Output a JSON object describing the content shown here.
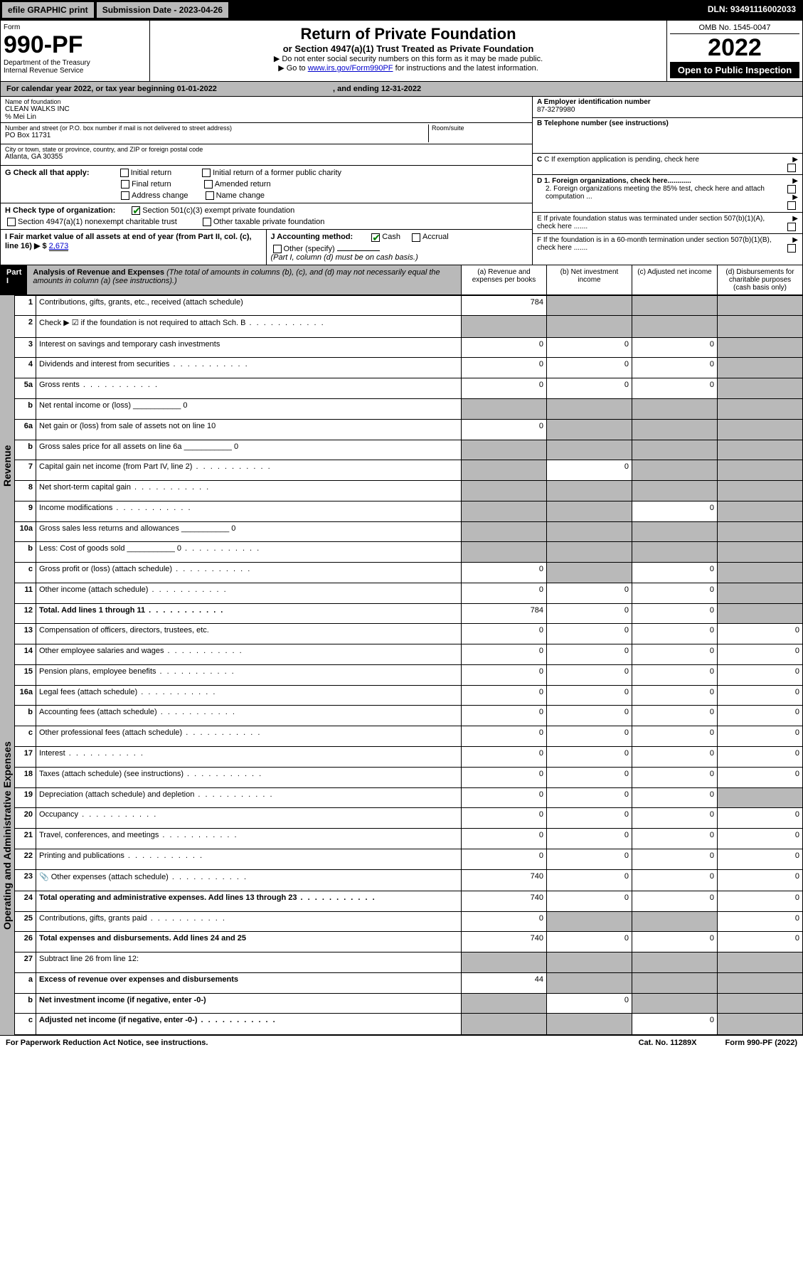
{
  "topbar": {
    "efile": "efile GRAPHIC print",
    "submission": "Submission Date - 2023-04-26",
    "dln": "DLN: 93491116002033"
  },
  "header": {
    "form_label": "Form",
    "form_num": "990-PF",
    "dept": "Department of the Treasury",
    "irs": "Internal Revenue Service",
    "title": "Return of Private Foundation",
    "subtitle": "or Section 4947(a)(1) Trust Treated as Private Foundation",
    "instr1": "▶ Do not enter social security numbers on this form as it may be made public.",
    "instr2_pre": "▶ Go to ",
    "instr2_link": "www.irs.gov/Form990PF",
    "instr2_post": " for instructions and the latest information.",
    "omb": "OMB No. 1545-0047",
    "year": "2022",
    "inspect": "Open to Public Inspection"
  },
  "calendar": {
    "text_pre": "For calendar year 2022, or tax year beginning ",
    "begin": "01-01-2022",
    "mid": " , and ending ",
    "end": "12-31-2022"
  },
  "foundation": {
    "name_label": "Name of foundation",
    "name": "CLEAN WALKS INC",
    "care_of": "% Mei Lin",
    "addr_label": "Number and street (or P.O. box number if mail is not delivered to street address)",
    "addr": "PO Box 11731",
    "room_label": "Room/suite",
    "city_label": "City or town, state or province, country, and ZIP or foreign postal code",
    "city": "Atlanta, GA  30355",
    "ein_label": "A Employer identification number",
    "ein": "87-3279980",
    "phone_label": "B Telephone number (see instructions)",
    "pending_label": "C If exemption application is pending, check here",
    "d1_label": "D 1. Foreign organizations, check here............",
    "d2_label": "2. Foreign organizations meeting the 85% test, check here and attach computation ...",
    "e_label": "E  If private foundation status was terminated under section 507(b)(1)(A), check here .......",
    "f_label": "F  If the foundation is in a 60-month termination under section 507(b)(1)(B), check here ......."
  },
  "checks": {
    "g_label": "G Check all that apply:",
    "initial": "Initial return",
    "initial_former": "Initial return of a former public charity",
    "final": "Final return",
    "amended": "Amended return",
    "addr_change": "Address change",
    "name_change": "Name change",
    "h_label": "H Check type of organization:",
    "h_501c3": "Section 501(c)(3) exempt private foundation",
    "h_4947": "Section 4947(a)(1) nonexempt charitable trust",
    "h_other": "Other taxable private foundation",
    "i_label": "I Fair market value of all assets at end of year (from Part II, col. (c), line 16) ▶ $ ",
    "i_value": "2,673",
    "j_label": "J Accounting method:",
    "j_cash": "Cash",
    "j_accrual": "Accrual",
    "j_other": "Other (specify)",
    "j_note": "(Part I, column (d) must be on cash basis.)"
  },
  "part1": {
    "label": "Part I",
    "title": "Analysis of Revenue and Expenses",
    "title_note": " (The total of amounts in columns (b), (c), and (d) may not necessarily equal the amounts in column (a) (see instructions).)",
    "col_a": "(a)   Revenue and expenses per books",
    "col_b": "(b)   Net investment income",
    "col_c": "(c)   Adjusted net income",
    "col_d": "(d)   Disbursements for charitable purposes (cash basis only)"
  },
  "side_labels": {
    "revenue": "Revenue",
    "expenses": "Operating and Administrative Expenses"
  },
  "rows": [
    {
      "n": "1",
      "d": "Contributions, gifts, grants, etc., received (attach schedule)",
      "a": "784",
      "b": "",
      "c": "",
      "dd": "",
      "sa": false,
      "sb": true,
      "sc": true,
      "sd": true
    },
    {
      "n": "2",
      "d": "Check ▶ ☑ if the foundation is not required to attach Sch. B",
      "a": "",
      "b": "",
      "c": "",
      "dd": "",
      "sa": true,
      "sb": true,
      "sc": true,
      "sd": true,
      "dots": true
    },
    {
      "n": "3",
      "d": "Interest on savings and temporary cash investments",
      "a": "0",
      "b": "0",
      "c": "0",
      "dd": "",
      "sa": false,
      "sb": false,
      "sc": false,
      "sd": true
    },
    {
      "n": "4",
      "d": "Dividends and interest from securities",
      "a": "0",
      "b": "0",
      "c": "0",
      "dd": "",
      "sa": false,
      "sb": false,
      "sc": false,
      "sd": true,
      "dots": true
    },
    {
      "n": "5a",
      "d": "Gross rents",
      "a": "0",
      "b": "0",
      "c": "0",
      "dd": "",
      "sa": false,
      "sb": false,
      "sc": false,
      "sd": true,
      "dots": true
    },
    {
      "n": "b",
      "d": "Net rental income or (loss)",
      "a": "",
      "b": "",
      "c": "",
      "dd": "",
      "sa": true,
      "sb": true,
      "sc": true,
      "sd": true,
      "inline": "0"
    },
    {
      "n": "6a",
      "d": "Net gain or (loss) from sale of assets not on line 10",
      "a": "0",
      "b": "",
      "c": "",
      "dd": "",
      "sa": false,
      "sb": true,
      "sc": true,
      "sd": true
    },
    {
      "n": "b",
      "d": "Gross sales price for all assets on line 6a",
      "a": "",
      "b": "",
      "c": "",
      "dd": "",
      "sa": true,
      "sb": true,
      "sc": true,
      "sd": true,
      "inline": "0"
    },
    {
      "n": "7",
      "d": "Capital gain net income (from Part IV, line 2)",
      "a": "",
      "b": "0",
      "c": "",
      "dd": "",
      "sa": true,
      "sb": false,
      "sc": true,
      "sd": true,
      "dots": true
    },
    {
      "n": "8",
      "d": "Net short-term capital gain",
      "a": "",
      "b": "",
      "c": "",
      "dd": "",
      "sa": true,
      "sb": true,
      "sc": true,
      "sd": true,
      "dots": true
    },
    {
      "n": "9",
      "d": "Income modifications",
      "a": "",
      "b": "",
      "c": "0",
      "dd": "",
      "sa": true,
      "sb": true,
      "sc": false,
      "sd": true,
      "dots": true
    },
    {
      "n": "10a",
      "d": "Gross sales less returns and allowances",
      "a": "",
      "b": "",
      "c": "",
      "dd": "",
      "sa": true,
      "sb": true,
      "sc": true,
      "sd": true,
      "inline": "0"
    },
    {
      "n": "b",
      "d": "Less: Cost of goods sold",
      "a": "",
      "b": "",
      "c": "",
      "dd": "",
      "sa": true,
      "sb": true,
      "sc": true,
      "sd": true,
      "inline": "0",
      "dots": true
    },
    {
      "n": "c",
      "d": "Gross profit or (loss) (attach schedule)",
      "a": "0",
      "b": "",
      "c": "0",
      "dd": "",
      "sa": false,
      "sb": true,
      "sc": false,
      "sd": true,
      "dots": true
    },
    {
      "n": "11",
      "d": "Other income (attach schedule)",
      "a": "0",
      "b": "0",
      "c": "0",
      "dd": "",
      "sa": false,
      "sb": false,
      "sc": false,
      "sd": true,
      "dots": true
    },
    {
      "n": "12",
      "d": "Total. Add lines 1 through 11",
      "a": "784",
      "b": "0",
      "c": "0",
      "dd": "",
      "sa": false,
      "sb": false,
      "sc": false,
      "sd": true,
      "bold": true,
      "dots": true
    },
    {
      "n": "13",
      "d": "Compensation of officers, directors, trustees, etc.",
      "a": "0",
      "b": "0",
      "c": "0",
      "dd": "0"
    },
    {
      "n": "14",
      "d": "Other employee salaries and wages",
      "a": "0",
      "b": "0",
      "c": "0",
      "dd": "0",
      "dots": true
    },
    {
      "n": "15",
      "d": "Pension plans, employee benefits",
      "a": "0",
      "b": "0",
      "c": "0",
      "dd": "0",
      "dots": true
    },
    {
      "n": "16a",
      "d": "Legal fees (attach schedule)",
      "a": "0",
      "b": "0",
      "c": "0",
      "dd": "0",
      "dots": true
    },
    {
      "n": "b",
      "d": "Accounting fees (attach schedule)",
      "a": "0",
      "b": "0",
      "c": "0",
      "dd": "0",
      "dots": true
    },
    {
      "n": "c",
      "d": "Other professional fees (attach schedule)",
      "a": "0",
      "b": "0",
      "c": "0",
      "dd": "0",
      "dots": true
    },
    {
      "n": "17",
      "d": "Interest",
      "a": "0",
      "b": "0",
      "c": "0",
      "dd": "0",
      "dots": true
    },
    {
      "n": "18",
      "d": "Taxes (attach schedule) (see instructions)",
      "a": "0",
      "b": "0",
      "c": "0",
      "dd": "0",
      "dots": true
    },
    {
      "n": "19",
      "d": "Depreciation (attach schedule) and depletion",
      "a": "0",
      "b": "0",
      "c": "0",
      "dd": "",
      "sd": true,
      "dots": true
    },
    {
      "n": "20",
      "d": "Occupancy",
      "a": "0",
      "b": "0",
      "c": "0",
      "dd": "0",
      "dots": true
    },
    {
      "n": "21",
      "d": "Travel, conferences, and meetings",
      "a": "0",
      "b": "0",
      "c": "0",
      "dd": "0",
      "dots": true
    },
    {
      "n": "22",
      "d": "Printing and publications",
      "a": "0",
      "b": "0",
      "c": "0",
      "dd": "0",
      "dots": true
    },
    {
      "n": "23",
      "d": "Other expenses (attach schedule)",
      "a": "740",
      "b": "0",
      "c": "0",
      "dd": "0",
      "dots": true,
      "icon": true
    },
    {
      "n": "24",
      "d": "Total operating and administrative expenses. Add lines 13 through 23",
      "a": "740",
      "b": "0",
      "c": "0",
      "dd": "0",
      "bold": true,
      "dots": true
    },
    {
      "n": "25",
      "d": "Contributions, gifts, grants paid",
      "a": "0",
      "b": "",
      "c": "",
      "dd": "0",
      "sb": true,
      "sc": true,
      "dots": true
    },
    {
      "n": "26",
      "d": "Total expenses and disbursements. Add lines 24 and 25",
      "a": "740",
      "b": "0",
      "c": "0",
      "dd": "0",
      "bold": true
    },
    {
      "n": "27",
      "d": "Subtract line 26 from line 12:",
      "a": "",
      "b": "",
      "c": "",
      "dd": "",
      "sa": true,
      "sb": true,
      "sc": true,
      "sd": true
    },
    {
      "n": "a",
      "d": "Excess of revenue over expenses and disbursements",
      "a": "44",
      "b": "",
      "c": "",
      "dd": "",
      "sb": true,
      "sc": true,
      "sd": true,
      "bold": true
    },
    {
      "n": "b",
      "d": "Net investment income (if negative, enter -0-)",
      "a": "",
      "b": "0",
      "c": "",
      "dd": "",
      "sa": true,
      "sc": true,
      "sd": true,
      "bold": true
    },
    {
      "n": "c",
      "d": "Adjusted net income (if negative, enter -0-)",
      "a": "",
      "b": "",
      "c": "0",
      "dd": "",
      "sa": true,
      "sb": true,
      "sd": true,
      "bold": true,
      "dots": true
    }
  ],
  "footer": {
    "left": "For Paperwork Reduction Act Notice, see instructions.",
    "mid": "Cat. No. 11289X",
    "right": "Form 990-PF (2022)"
  },
  "colors": {
    "shade": "#b9b9b9",
    "link": "#0000cc",
    "check": "#008000"
  }
}
